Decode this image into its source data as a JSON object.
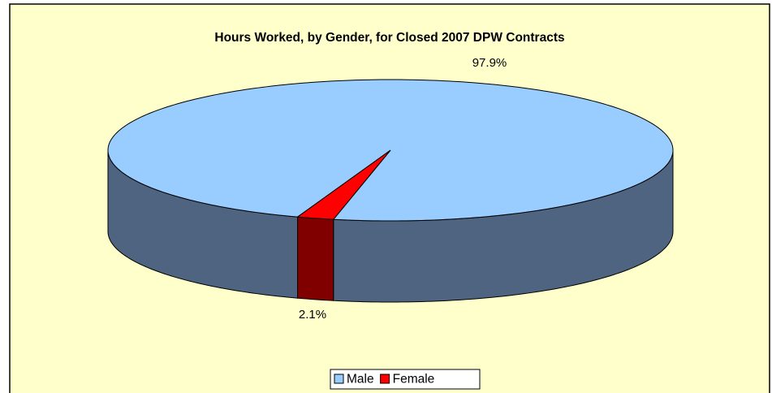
{
  "chart_data": {
    "type": "pie3d",
    "title": "Hours Worked, by Gender, for Closed 2007 DPW Contracts",
    "categories": [
      "Male",
      "Female"
    ],
    "values": [
      97.9,
      2.1
    ],
    "value_labels": [
      "97.9%",
      "2.1%"
    ],
    "colors": [
      "#99ccff",
      "#ff0000"
    ],
    "side_colors": [
      "#4f6480",
      "#800000"
    ],
    "legend": "bottom"
  }
}
